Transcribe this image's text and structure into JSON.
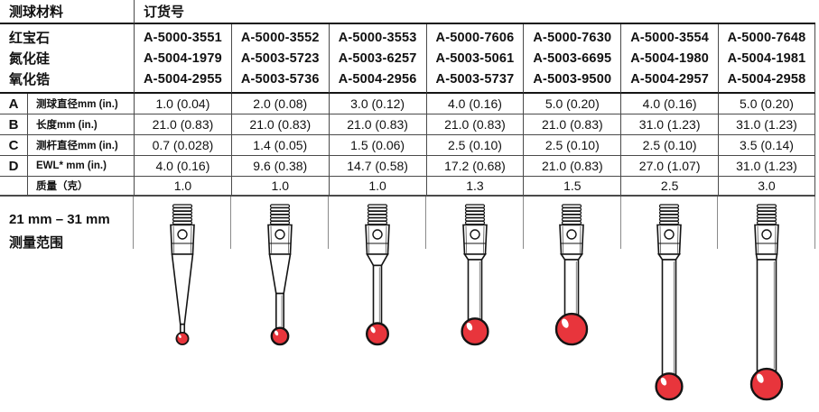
{
  "table": {
    "header": {
      "material_label": "测球材料",
      "order_label": "订货号"
    },
    "materials": [
      {
        "name": "红宝石",
        "parts": [
          "A-5000-3551",
          "A-5000-3552",
          "A-5000-3553",
          "A-5000-7606",
          "A-5000-7630",
          "A-5000-3554",
          "A-5000-7648"
        ]
      },
      {
        "name": "氮化硅",
        "parts": [
          "A-5004-1979",
          "A-5003-5723",
          "A-5003-6257",
          "A-5003-5061",
          "A-5003-6695",
          "A-5004-1980",
          "A-5004-1981"
        ]
      },
      {
        "name": "氧化锆",
        "parts": [
          "A-5004-2955",
          "A-5003-5736",
          "A-5004-2956",
          "A-5003-5737",
          "A-5003-9500",
          "A-5004-2957",
          "A-5004-2958"
        ]
      }
    ],
    "spec_rows": [
      {
        "letter": "A",
        "label": "测球直径mm (in.)",
        "values": [
          "1.0 (0.04)",
          "2.0 (0.08)",
          "3.0 (0.12)",
          "4.0 (0.16)",
          "5.0 (0.20)",
          "4.0 (0.16)",
          "5.0 (0.20)"
        ]
      },
      {
        "letter": "B",
        "label": "长度mm (in.)",
        "values": [
          "21.0 (0.83)",
          "21.0 (0.83)",
          "21.0 (0.83)",
          "21.0 (0.83)",
          "21.0 (0.83)",
          "31.0 (1.23)",
          "31.0 (1.23)"
        ]
      },
      {
        "letter": "C",
        "label": "测杆直径mm (in.)",
        "values": [
          "0.7 (0.028)",
          "1.4 (0.05)",
          "1.5 (0.06)",
          "2.5 (0.10)",
          "2.5 (0.10)",
          "2.5 (0.10)",
          "3.5 (0.14)"
        ]
      },
      {
        "letter": "D",
        "label": "EWL* mm (in.)",
        "values": [
          "4.0 (0.16)",
          "9.6 (0.38)",
          "14.7 (0.58)",
          "17.2 (0.68)",
          "21.0 (0.83)",
          "27.0 (1.07)",
          "31.0 (1.23)"
        ]
      },
      {
        "letter": "",
        "label": "质量（克）",
        "values": [
          "1.0",
          "1.0",
          "1.0",
          "1.3",
          "1.5",
          "2.5",
          "3.0"
        ]
      }
    ]
  },
  "range_note": {
    "line1": "21 mm – 31 mm",
    "line2": "测量范围"
  },
  "colors": {
    "ball_red": "#e8353c",
    "outline": "#141414"
  },
  "styli": [
    {
      "ball_mm": 1.0,
      "stem_mm": 0.7,
      "length_mm": 21.0,
      "ewl_mm": 4.0
    },
    {
      "ball_mm": 2.0,
      "stem_mm": 1.4,
      "length_mm": 21.0,
      "ewl_mm": 9.6
    },
    {
      "ball_mm": 3.0,
      "stem_mm": 1.5,
      "length_mm": 21.0,
      "ewl_mm": 14.7
    },
    {
      "ball_mm": 4.0,
      "stem_mm": 2.5,
      "length_mm": 21.0,
      "ewl_mm": 17.2
    },
    {
      "ball_mm": 5.0,
      "stem_mm": 2.5,
      "length_mm": 21.0,
      "ewl_mm": 21.0
    },
    {
      "ball_mm": 4.0,
      "stem_mm": 2.5,
      "length_mm": 31.0,
      "ewl_mm": 27.0
    },
    {
      "ball_mm": 5.0,
      "stem_mm": 3.5,
      "length_mm": 31.0,
      "ewl_mm": 31.0
    }
  ]
}
